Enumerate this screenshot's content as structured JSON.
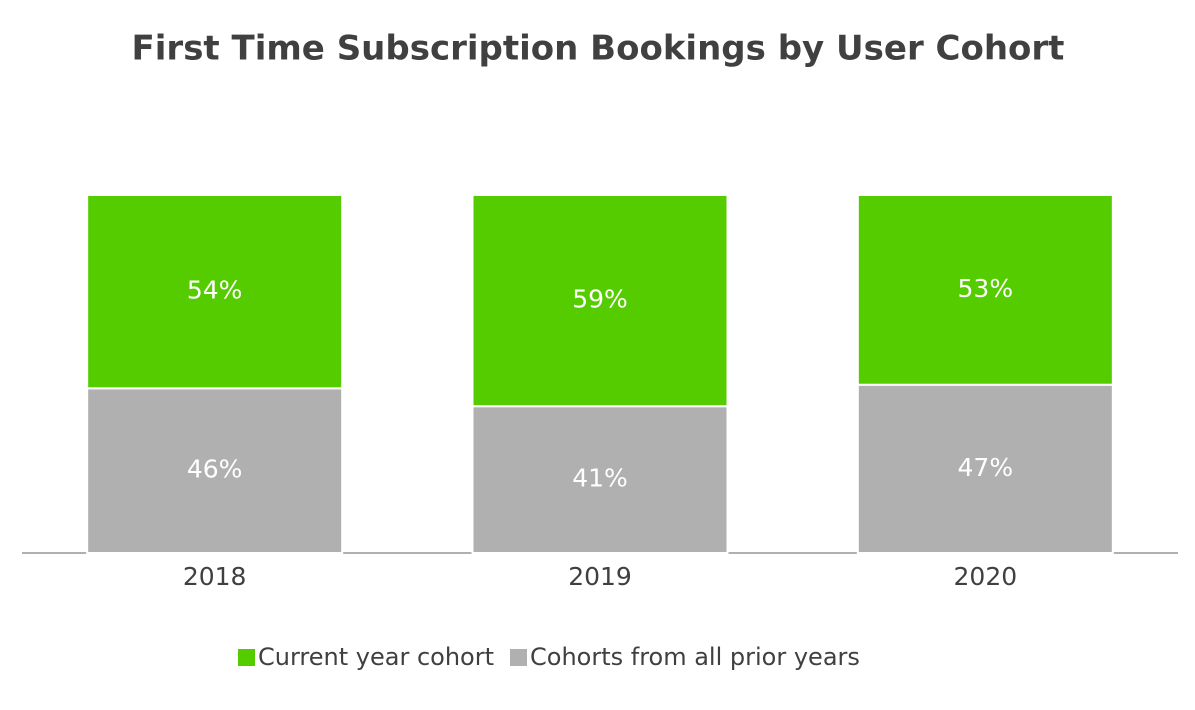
{
  "chart_data": {
    "type": "stacked_bar",
    "title": "First Time Subscription Bookings by User Cohort",
    "categories": [
      "2018",
      "2019",
      "2020"
    ],
    "series": [
      {
        "name": "Current year cohort",
        "color": "#55cc00",
        "values": [
          54,
          59,
          53
        ],
        "value_labels": [
          "54%",
          "59%",
          "53%"
        ]
      },
      {
        "name": "Cohorts from all prior years",
        "color": "#b0b0b0",
        "values": [
          46,
          41,
          47
        ],
        "value_labels": [
          "46%",
          "41%",
          "47%"
        ]
      }
    ],
    "ylim": [
      0,
      100
    ],
    "legend": "bottom"
  }
}
